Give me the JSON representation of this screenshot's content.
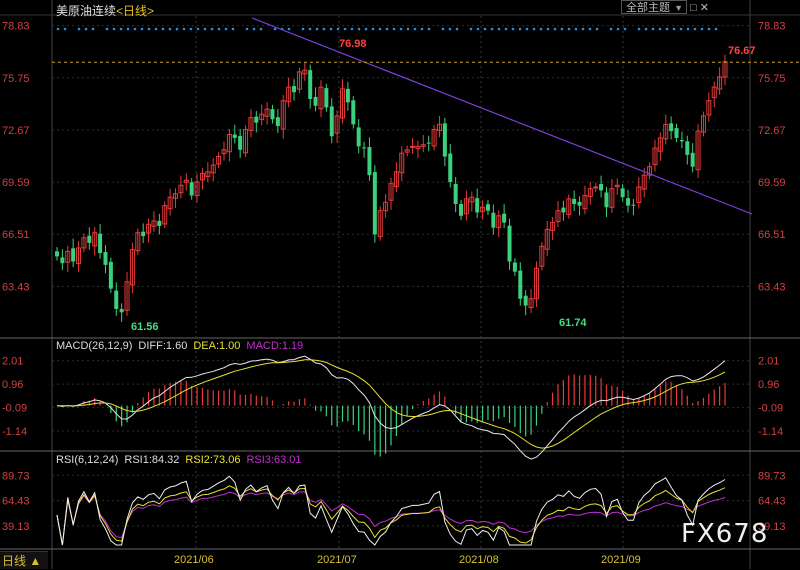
{
  "header": {
    "instrument": "美原油连续",
    "period": "<日线>",
    "theme_button": "全部主题",
    "theme_arrow": "▼"
  },
  "window_controls": "□ ✕",
  "main_axis": {
    "ticks": [
      "78.83",
      "75.75",
      "72.67",
      "69.59",
      "66.51",
      "63.43"
    ]
  },
  "annotations": {
    "high": "76.98",
    "low1": "61.56",
    "low2": "61.74",
    "last": "76.67"
  },
  "x_labels": [
    "2021/06",
    "2021/07",
    "2021/08",
    "2021/09"
  ],
  "macd": {
    "title": "MACD(26,12,9)",
    "diff": "DIFF:1.60",
    "dea": "DEA:1.00",
    "macd": "MACD:1.19",
    "ticks": [
      "2.01",
      "0.96",
      "-0.09",
      "-1.14"
    ]
  },
  "rsi": {
    "title": "RSI(6,12,24)",
    "rsi1": "RSI1:84.32",
    "rsi2": "RSI2:73.06",
    "rsi3": "RSI3:63.01",
    "ticks": [
      "89.73",
      "64.43",
      "39.13"
    ]
  },
  "bottom_tab": "日线 ▲",
  "logo": "FX678",
  "colors": {
    "up": "#e83a3a",
    "down": "#3bd17c",
    "trendline": "#7b3fe0",
    "diff": "#e8e8e8",
    "dea": "#e8e030",
    "rsi3": "#c030d0",
    "rsi_white": "#f0f0f0",
    "rsi_yellow": "#e8e030"
  },
  "chart_data": {
    "type": "candlestick",
    "price_range": [
      60.5,
      79.4
    ],
    "close_series": [
      65.2,
      64.8,
      65.5,
      64.9,
      65.7,
      66.3,
      66.0,
      66.6,
      65.4,
      64.7,
      63.3,
      62.1,
      61.9,
      63.7,
      65.6,
      66.6,
      66.4,
      67.1,
      67.3,
      67.0,
      68.2,
      68.7,
      68.9,
      69.4,
      69.7,
      68.8,
      69.6,
      70.1,
      70.2,
      70.6,
      71.1,
      71.5,
      72.4,
      72.2,
      71.5,
      72.7,
      73.4,
      73.1,
      73.6,
      73.9,
      73.3,
      72.9,
      74.4,
      75.2,
      74.9,
      76.1,
      76.2,
      74.5,
      74.1,
      75.2,
      74.0,
      72.3,
      73.5,
      75.1,
      74.3,
      73.0,
      71.7,
      71.6,
      70.0,
      66.5,
      67.9,
      68.4,
      69.5,
      70.2,
      71.3,
      71.5,
      71.7,
      71.7,
      71.8,
      71.9,
      72.7,
      73.0,
      71.1,
      69.6,
      68.3,
      67.6,
      68.6,
      68.7,
      67.8,
      68.1,
      67.9,
      66.9,
      67.6,
      67.2,
      64.9,
      64.3,
      62.7,
      62.3,
      62.7,
      64.5,
      65.8,
      66.8,
      67.2,
      67.9,
      67.8,
      68.6,
      68.3,
      68.2,
      68.8,
      69.2,
      69.3,
      69.1,
      68.1,
      69.2,
      69.4,
      68.7,
      68.2,
      68.2,
      69.3,
      70.0,
      70.5,
      71.6,
      72.2,
      73.0,
      72.6,
      72.2,
      72.0,
      71.2,
      70.5,
      72.6,
      73.5,
      74.4,
      75.2,
      75.8,
      76.7
    ],
    "x_labels": [
      "2021/06",
      "2021/07",
      "2021/08",
      "2021/09"
    ],
    "high": 76.98,
    "low": 61.56,
    "last": 76.67
  }
}
